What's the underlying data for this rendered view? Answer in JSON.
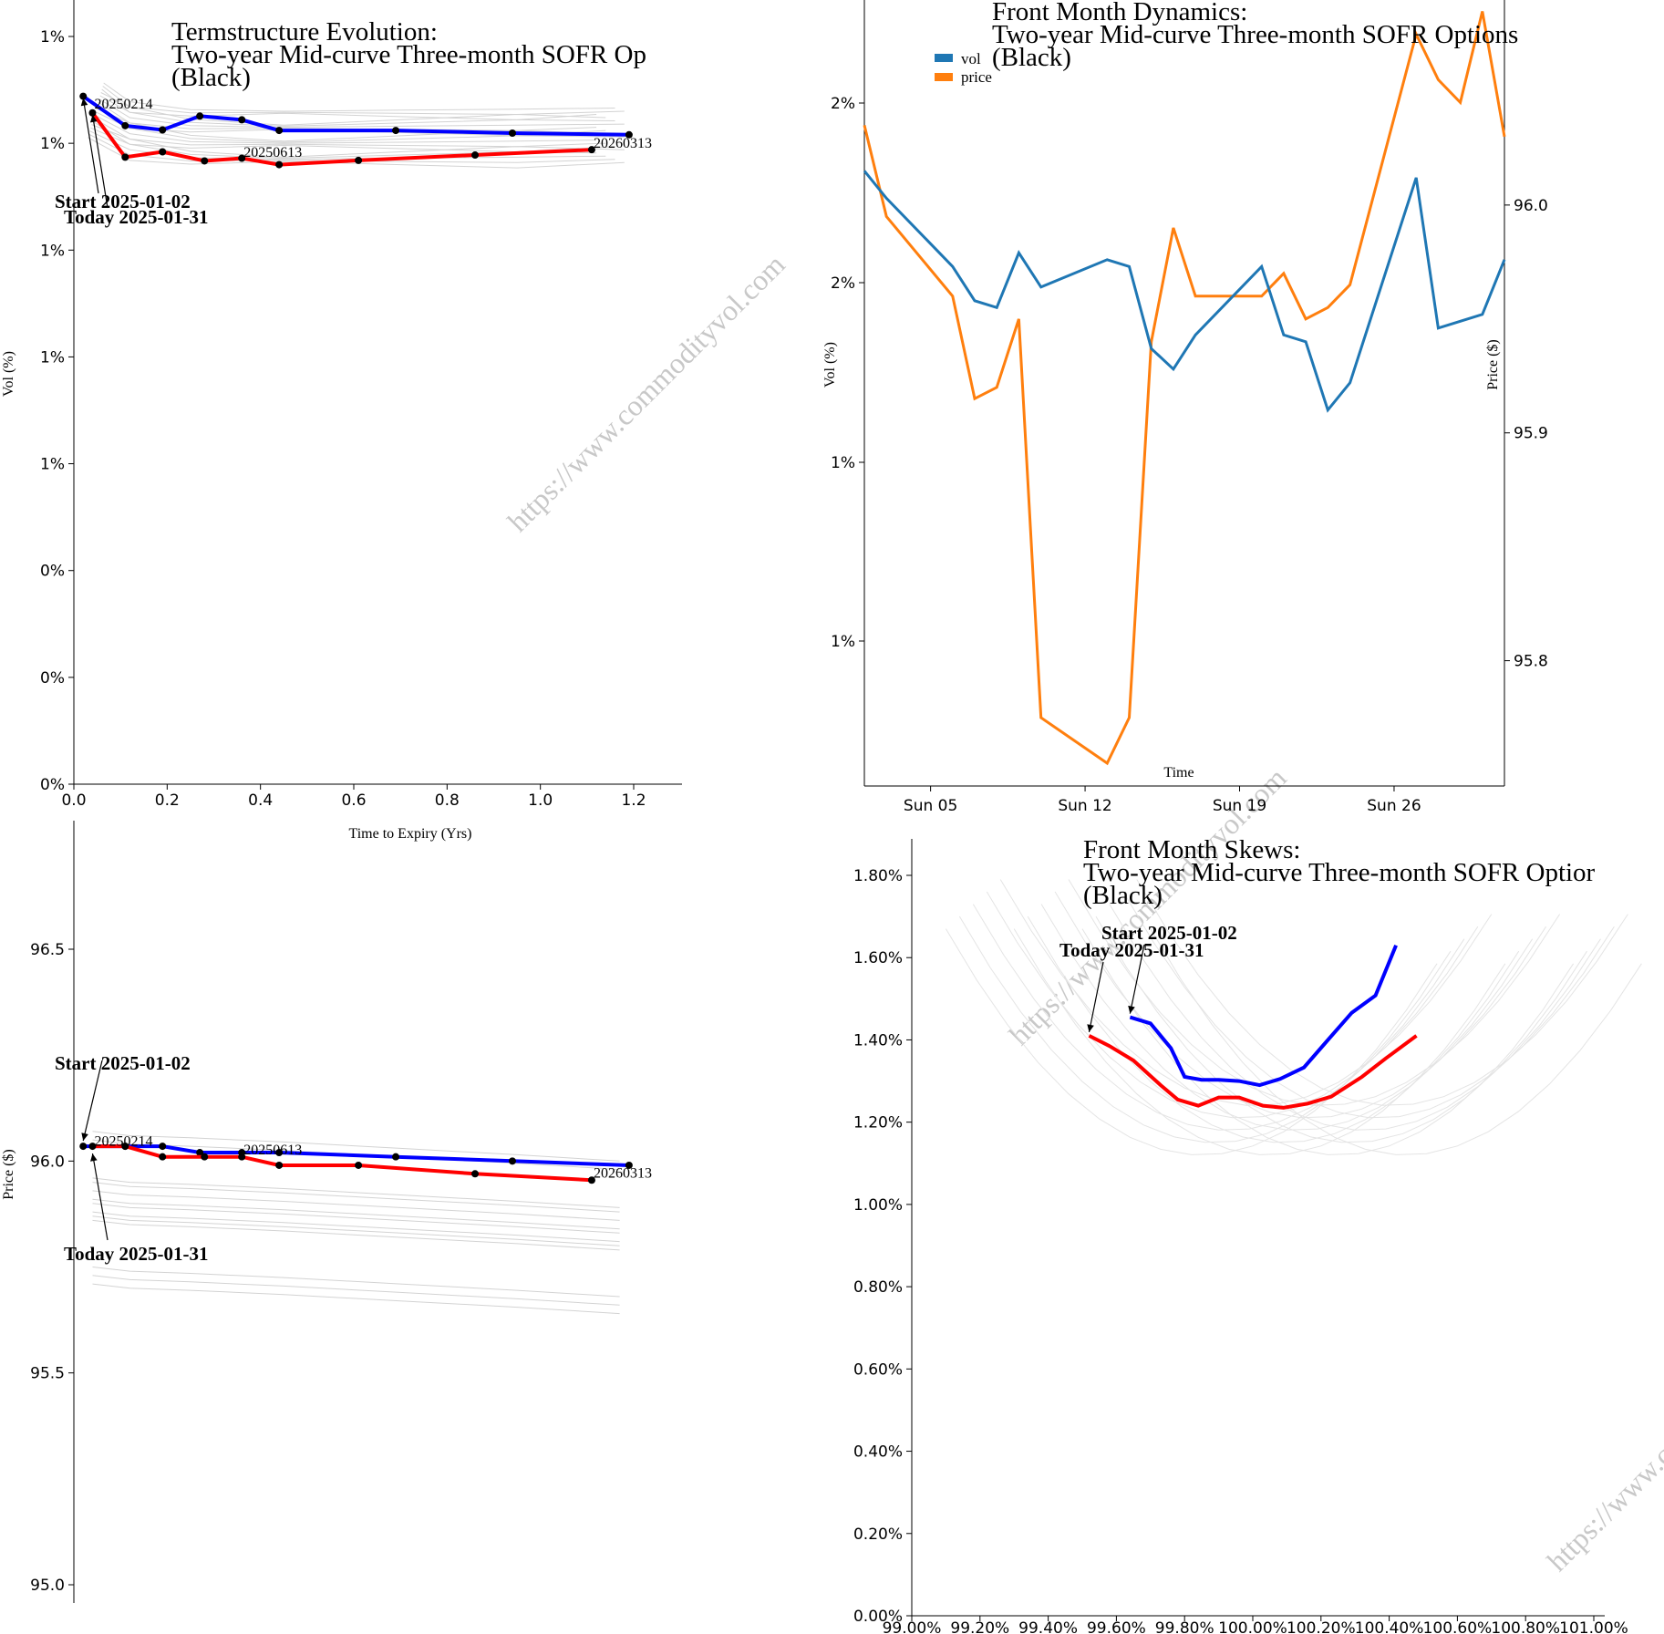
{
  "watermark": "https://www.commodityvol.com",
  "colors": {
    "blue": "#0000ff",
    "red": "#ff0000",
    "vol": "#1f77b4",
    "price": "#ff7f0e",
    "history": "#d3d3d3",
    "marker": "#000000"
  },
  "chart_data": [
    {
      "id": "termstructure",
      "type": "line",
      "title_lines": [
        "Termstructure Evolution:",
        "Two-year Mid-curve Three-month SOFR Op",
        "(Black)"
      ],
      "xlabel": "Time to Expiry (Yrs)",
      "ylabel": "Vol (%)",
      "xlim": [
        0,
        1.3
      ],
      "ylim": [
        0,
        1.4
      ],
      "x_ticks": [
        "0.0",
        "0.2",
        "0.4",
        "0.6",
        "0.8",
        "1.0",
        "1.2"
      ],
      "y_ticks": [
        "0%",
        "0%",
        "0%",
        "1%",
        "1%",
        "1%",
        "1%",
        "1%"
      ],
      "y_tick_values": [
        0,
        0.2,
        0.4,
        0.6,
        0.8,
        1.0,
        1.2,
        1.4
      ],
      "series": [
        {
          "name": "Start 2025-01-02",
          "color": "#0000ff",
          "x": [
            0.02,
            0.11,
            0.19,
            0.27,
            0.36,
            0.44,
            0.69,
            0.94,
            1.19
          ],
          "y": [
            1.288,
            1.233,
            1.225,
            1.251,
            1.244,
            1.224,
            1.224,
            1.219,
            1.216
          ]
        },
        {
          "name": "Today 2025-01-31",
          "color": "#ff0000",
          "x": [
            0.04,
            0.11,
            0.19,
            0.28,
            0.36,
            0.44,
            0.61,
            0.86,
            1.11
          ],
          "y": [
            1.257,
            1.174,
            1.184,
            1.167,
            1.172,
            1.16,
            1.168,
            1.178,
            1.188
          ]
        }
      ],
      "history_count": 18,
      "date_labels": [
        {
          "text": "20250214",
          "x": 0.04,
          "y": 1.265
        },
        {
          "text": "20250613",
          "x": 0.36,
          "y": 1.175
        },
        {
          "text": "20260313",
          "x": 1.11,
          "y": 1.192
        }
      ],
      "annotations": [
        "Start 2025-01-02",
        "Today 2025-01-31"
      ]
    },
    {
      "id": "dynamics",
      "type": "line",
      "title_lines": [
        "Front Month Dynamics:",
        "Two-year Mid-curve Three-month SOFR Options",
        "(Black)"
      ],
      "xlabel": "Time",
      "ylabel": "Vol (%)",
      "y2label": "Price ($)",
      "x_ticks": [
        "Sun 05",
        "Sun 12",
        "Sun 19",
        "Sun 26"
      ],
      "y_ticks": [
        "1%",
        "1%",
        "2%",
        "2%"
      ],
      "y2_ticks": [
        "95.8",
        "95.9",
        "96.0"
      ],
      "legend": [
        "vol",
        "price"
      ],
      "days": [
        2,
        3,
        6,
        7,
        8,
        9,
        10,
        13,
        14,
        15,
        16,
        17,
        20,
        21,
        22,
        23,
        24,
        27,
        28,
        29,
        30,
        31
      ],
      "vol": [
        1.295,
        1.291,
        1.281,
        1.276,
        1.275,
        1.283,
        1.278,
        1.282,
        1.281,
        1.269,
        1.266,
        1.271,
        1.281,
        1.271,
        1.27,
        1.26,
        1.264,
        1.294,
        1.272,
        1.273,
        1.274,
        1.282
      ],
      "price": [
        96.035,
        95.995,
        95.96,
        95.915,
        95.92,
        95.95,
        95.775,
        95.755,
        95.775,
        95.94,
        95.99,
        95.96,
        95.96,
        95.97,
        95.95,
        95.955,
        95.965,
        96.075,
        96.055,
        96.045,
        96.085,
        96.03
      ],
      "ylim": [
        1.205,
        1.32
      ],
      "y2lim": [
        95.745,
        96.09
      ]
    },
    {
      "id": "price_term",
      "type": "line",
      "title_lines": [],
      "ylabel": "Price ($)",
      "y_ticks": [
        "95.0",
        "95.5",
        "96.0",
        "96.5"
      ],
      "ylim": [
        94.97,
        96.72
      ],
      "xlim": [
        0,
        1.3
      ],
      "series": [
        {
          "name": "Start 2025-01-02",
          "color": "#0000ff",
          "x": [
            0.02,
            0.11,
            0.19,
            0.27,
            0.36,
            0.44,
            0.69,
            0.94,
            1.19
          ],
          "y": [
            96.035,
            96.035,
            96.035,
            96.02,
            96.02,
            96.02,
            96.01,
            96.0,
            95.99
          ]
        },
        {
          "name": "Today 2025-01-31",
          "color": "#ff0000",
          "x": [
            0.04,
            0.11,
            0.19,
            0.28,
            0.36,
            0.44,
            0.61,
            0.86,
            1.11
          ],
          "y": [
            96.035,
            96.035,
            96.01,
            96.01,
            96.01,
            95.99,
            95.99,
            95.97,
            95.955
          ]
        }
      ],
      "date_labels": [
        {
          "text": "20250214",
          "x": 0.04,
          "y": 96.04
        },
        {
          "text": "20250613",
          "x": 0.36,
          "y": 96.02
        },
        {
          "text": "20260313",
          "x": 1.11,
          "y": 95.965
        }
      ],
      "annotations": [
        "Start 2025-01-02",
        "Today 2025-01-31"
      ]
    },
    {
      "id": "skews",
      "type": "line",
      "title_lines": [
        "Front Month Skews:",
        "Two-year Mid-curve Three-month SOFR Optior",
        "(Black)"
      ],
      "x_ticks": [
        "99.00%",
        "99.20%",
        "99.40%",
        "99.60%",
        "99.80%",
        "100.00%",
        "100.20%",
        "100.40%",
        "100.60%",
        "100.80%",
        "101.00%"
      ],
      "y_ticks": [
        "0.00%",
        "0.20%",
        "0.40%",
        "0.60%",
        "0.80%",
        "1.00%",
        "1.20%",
        "1.40%",
        "1.60%",
        "1.80%"
      ],
      "xlim": [
        99.0,
        101.0
      ],
      "ylim": [
        0,
        1.885
      ],
      "series": [
        {
          "name": "Start 2025-01-02",
          "color": "#0000ff",
          "x": [
            99.64,
            99.7,
            99.76,
            99.8,
            99.85,
            99.9,
            99.96,
            100.02,
            100.08,
            100.15,
            100.21,
            100.29,
            100.36,
            100.42
          ],
          "y": [
            1.455,
            1.44,
            1.38,
            1.31,
            1.303,
            1.303,
            1.3,
            1.29,
            1.305,
            1.333,
            1.39,
            1.466,
            1.508,
            1.63
          ]
        },
        {
          "name": "Today 2025-01-31",
          "color": "#ff0000",
          "x": [
            99.52,
            99.58,
            99.65,
            99.73,
            99.78,
            99.84,
            99.9,
            99.96,
            100.03,
            100.09,
            100.16,
            100.23,
            100.32,
            100.39,
            100.48
          ],
          "y": [
            1.41,
            1.385,
            1.35,
            1.29,
            1.255,
            1.24,
            1.26,
            1.26,
            1.24,
            1.235,
            1.245,
            1.262,
            1.31,
            1.355,
            1.41
          ]
        }
      ],
      "annotations": [
        "Start 2025-01-02",
        "Today 2025-01-31"
      ]
    }
  ]
}
